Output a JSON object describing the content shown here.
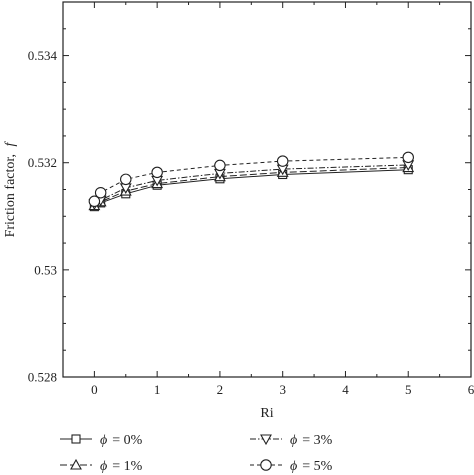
{
  "chart_data": {
    "type": "line",
    "xlabel": "Ri",
    "ylabel": "Friction factor,",
    "ylabel_symbol": "f",
    "xlim": [
      -0.5,
      6
    ],
    "ylim": [
      0.528,
      0.535
    ],
    "xticks": [
      0,
      1,
      2,
      3,
      4,
      5,
      6
    ],
    "xtick_labels": [
      "0",
      "1",
      "2",
      "3",
      "4",
      "5",
      "6"
    ],
    "yticks": [
      0.528,
      0.53,
      0.532,
      0.534
    ],
    "ytick_labels": [
      "0.528",
      "0.53",
      "0.532",
      "0.534"
    ],
    "grid": false,
    "legend_placement": "bottom",
    "series": [
      {
        "name": "= 0%",
        "symbol": "ϕ",
        "marker": "square",
        "dash": "solid",
        "x": [
          0,
          0.1,
          0.5,
          1,
          2,
          3,
          5
        ],
        "y": [
          0.53118,
          0.53125,
          0.53142,
          0.53158,
          0.5317,
          0.53178,
          0.53187
        ]
      },
      {
        "name": "= 1%",
        "symbol": "ϕ",
        "marker": "triangle-up",
        "dash": "long-dash",
        "x": [
          0,
          0.1,
          0.5,
          1,
          2,
          3,
          5
        ],
        "y": [
          0.5312,
          0.53127,
          0.53147,
          0.53161,
          0.53174,
          0.53182,
          0.53191
        ]
      },
      {
        "name": "= 3%",
        "symbol": "ϕ",
        "marker": "triangle-down",
        "dash": "dash-dot",
        "x": [
          0,
          0.1,
          0.5,
          1,
          2,
          3,
          5
        ],
        "y": [
          0.53123,
          0.5313,
          0.53153,
          0.53167,
          0.5318,
          0.53188,
          0.53196
        ]
      },
      {
        "name": "= 5%",
        "symbol": "ϕ",
        "marker": "circle",
        "dash": "dashed",
        "x": [
          0,
          0.1,
          0.5,
          1,
          2,
          3,
          5
        ],
        "y": [
          0.53128,
          0.53144,
          0.53169,
          0.53182,
          0.53195,
          0.53203,
          0.5321
        ]
      }
    ]
  }
}
